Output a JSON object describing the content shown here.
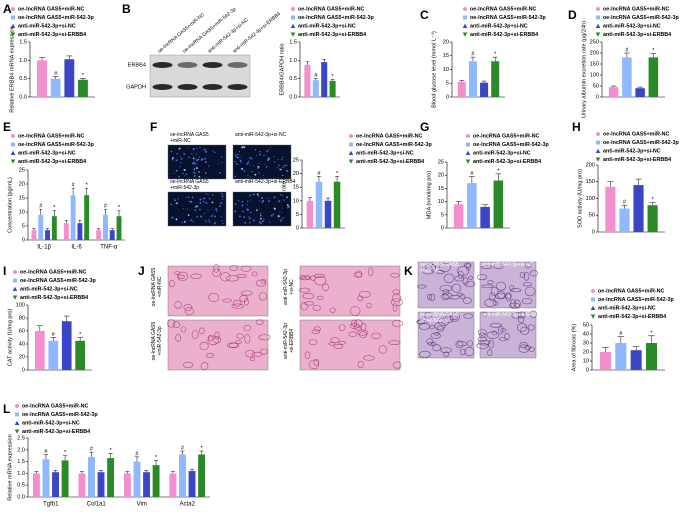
{
  "chart_data": [
    {
      "type": "bar",
      "panel": "A",
      "ylabel": "Relative ERBB4 mRNA expression",
      "ylim": [
        0,
        1.5
      ],
      "yticks": [
        {
          "value": 0,
          "label": "0.0"
        },
        0.5,
        {
          "value": 1,
          "label": "1.0"
        },
        1.5
      ],
      "series": [
        {
          "name": "oe-lncRNA GAS5+miR-NC",
          "color": "#f48fcf",
          "values": [
            1.0
          ],
          "errors": [
            0.08
          ],
          "annotations": [
            null
          ]
        },
        {
          "name": "oe-lncRNA GAS5+miR-542-3p",
          "color": "#8fb8ff",
          "values": [
            0.5
          ],
          "errors": [
            0.06
          ],
          "annotations": [
            "#"
          ]
        },
        {
          "name": "anti-miR-542-3p+si-NC",
          "color": "#3a45c8",
          "values": [
            1.03
          ],
          "errors": [
            0.09
          ],
          "annotations": [
            null
          ]
        },
        {
          "name": "anti-miR-542-3p+si-ERBB4",
          "color": "#2a8a2a",
          "values": [
            0.47
          ],
          "errors": [
            0.04
          ],
          "annotations": [
            "*"
          ]
        }
      ]
    },
    {
      "type": "bar",
      "panel": "B",
      "ylabel": "ERBB4/GAPDH ratio",
      "ylim": [
        0,
        1.5
      ],
      "yticks": [
        {
          "value": 0,
          "label": "0.0"
        },
        0.5,
        {
          "value": 1,
          "label": "1.0"
        },
        1.5
      ],
      "blot_labels": [
        "ERBB4",
        "GAPDH"
      ],
      "lane_labels": [
        "oe-lncRNA GAS5+miR-NC",
        "oe-lncRNA GAS5+miR-542-3p",
        "anti-miR-542-3p+si-NC",
        "anti-miR-542-3p+si-ERBB4"
      ],
      "series": [
        {
          "name": "oe-lncRNA GAS5+miR-NC",
          "color": "#f48fcf",
          "values": [
            0.88
          ],
          "errors": [
            0.08
          ],
          "annotations": [
            null
          ]
        },
        {
          "name": "oe-lncRNA GAS5+miR-542-3p",
          "color": "#8fb8ff",
          "values": [
            0.46
          ],
          "errors": [
            0.05
          ],
          "annotations": [
            "#"
          ]
        },
        {
          "name": "anti-miR-542-3p+si-NC",
          "color": "#3a45c8",
          "values": [
            0.95
          ],
          "errors": [
            0.08
          ],
          "annotations": [
            null
          ]
        },
        {
          "name": "anti-miR-542-3p+si-ERBB4",
          "color": "#2a8a2a",
          "values": [
            0.44
          ],
          "errors": [
            0.04
          ],
          "annotations": [
            "*"
          ]
        }
      ]
    },
    {
      "type": "bar",
      "panel": "C",
      "ylabel": "Blood glucose level (mmol L⁻¹)",
      "ylim": [
        0,
        20
      ],
      "yticks": [
        0,
        5,
        10,
        15,
        20
      ],
      "series": [
        {
          "name": "oe-lncRNA GAS5+miR-NC",
          "color": "#f48fcf",
          "values": [
            5.5
          ],
          "errors": [
            0.6
          ],
          "annotations": [
            null
          ]
        },
        {
          "name": "oe-lncRNA GAS5+miR-542-3p",
          "color": "#8fb8ff",
          "values": [
            13
          ],
          "errors": [
            1.5
          ],
          "annotations": [
            "#"
          ]
        },
        {
          "name": "anti-miR-542-3p+si-NC",
          "color": "#3a45c8",
          "values": [
            5.2
          ],
          "errors": [
            0.6
          ],
          "annotations": [
            null
          ]
        },
        {
          "name": "anti-miR-542-3p+si-ERBB4",
          "color": "#2a8a2a",
          "values": [
            13
          ],
          "errors": [
            1.5
          ],
          "annotations": [
            "*"
          ]
        }
      ]
    },
    {
      "type": "bar",
      "panel": "D",
      "ylabel": "Urinary albumin excretion rate (μg/24h)",
      "ylim": [
        0,
        250
      ],
      "yticks": [
        0,
        50,
        100,
        150,
        200,
        250
      ],
      "series": [
        {
          "name": "oe-lncRNA GAS5+miR-NC",
          "color": "#f48fcf",
          "values": [
            45
          ],
          "errors": [
            5
          ],
          "annotations": [
            null
          ]
        },
        {
          "name": "oe-lncRNA GAS5+miR-542-3p",
          "color": "#8fb8ff",
          "values": [
            180
          ],
          "errors": [
            20
          ],
          "annotations": [
            "#"
          ]
        },
        {
          "name": "anti-miR-542-3p+si-NC",
          "color": "#3a45c8",
          "values": [
            40
          ],
          "errors": [
            5
          ],
          "annotations": [
            null
          ]
        },
        {
          "name": "anti-miR-542-3p+si-ERBB4",
          "color": "#2a8a2a",
          "values": [
            180
          ],
          "errors": [
            18
          ],
          "annotations": [
            "*"
          ]
        }
      ]
    },
    {
      "type": "bar",
      "panel": "E",
      "ylabel": "Concentration (pg/mL)",
      "ylim": [
        0,
        25
      ],
      "yticks": [
        0,
        5,
        10,
        15,
        20,
        25
      ],
      "categories": [
        "IL-1β",
        "IL-6",
        "TNF-α"
      ],
      "series": [
        {
          "name": "oe-lncRNA GAS5+miR-NC",
          "color": "#f48fcf",
          "values": [
            3.5,
            6,
            3.5
          ],
          "errors": [
            0.6,
            1,
            0.6
          ],
          "annotations": [
            null,
            null,
            null
          ]
        },
        {
          "name": "oe-lncRNA GAS5+miR-542-3p",
          "color": "#8fb8ff",
          "values": [
            9,
            16,
            9
          ],
          "errors": [
            2,
            2.5,
            2
          ],
          "annotations": [
            "#",
            "#",
            "#"
          ]
        },
        {
          "name": "anti-miR-542-3p+si-NC",
          "color": "#3a45c8",
          "values": [
            3.5,
            6,
            3.5
          ],
          "errors": [
            0.6,
            1,
            0.6
          ],
          "annotations": [
            null,
            null,
            null
          ]
        },
        {
          "name": "anti-miR-542-3p+si-ERBB4",
          "color": "#2a8a2a",
          "values": [
            8.5,
            16,
            8.5
          ],
          "errors": [
            2,
            2.5,
            2
          ],
          "annotations": [
            "*",
            "*",
            "*"
          ]
        }
      ]
    },
    {
      "type": "bar",
      "panel": "F",
      "ylabel": "Apoptosis rate (%)",
      "ylim": [
        0,
        25
      ],
      "yticks": [
        0,
        5,
        10,
        15,
        20,
        25
      ],
      "image_labels": [
        "oe-lncRNA GAS5\n+miR-NC",
        "anti-miR-542-3p+si-NC",
        "oe-lncRNA GAS5\n+miR-542-3p",
        "anti-miR-542-3p+si-ERBB4"
      ],
      "series": [
        {
          "name": "oe-lncRNA GAS5+miR-NC",
          "color": "#f48fcf",
          "values": [
            10
          ],
          "errors": [
            1.2
          ],
          "annotations": [
            null
          ]
        },
        {
          "name": "oe-lncRNA GAS5+miR-542-3p",
          "color": "#8fb8ff",
          "values": [
            17
          ],
          "errors": [
            2
          ],
          "annotations": [
            "#"
          ]
        },
        {
          "name": "anti-miR-542-3p+si-NC",
          "color": "#3a45c8",
          "values": [
            10
          ],
          "errors": [
            1
          ],
          "annotations": [
            null
          ]
        },
        {
          "name": "anti-miR-542-3p+si-ERBB4",
          "color": "#2a8a2a",
          "values": [
            17
          ],
          "errors": [
            2
          ],
          "annotations": [
            "*"
          ]
        }
      ]
    },
    {
      "type": "bar",
      "panel": "G",
      "ylabel": "MDA (nmol/mg pro)",
      "ylim": [
        0,
        25
      ],
      "yticks": [
        0,
        5,
        10,
        15,
        20,
        25
      ],
      "series": [
        {
          "name": "oe-lncRNA GAS5+miR-NC",
          "color": "#f48fcf",
          "values": [
            9
          ],
          "errors": [
            1
          ],
          "annotations": [
            null
          ]
        },
        {
          "name": "oe-lncRNA GAS5+miR-542-3p",
          "color": "#8fb8ff",
          "values": [
            17
          ],
          "errors": [
            2.5
          ],
          "annotations": [
            "#"
          ]
        },
        {
          "name": "anti-miR-542-3p+si-NC",
          "color": "#3a45c8",
          "values": [
            8
          ],
          "errors": [
            0.8
          ],
          "annotations": [
            null
          ]
        },
        {
          "name": "anti-miR-542-3p+si-ERBB4",
          "color": "#2a8a2a",
          "values": [
            18
          ],
          "errors": [
            2.5
          ],
          "annotations": [
            "*"
          ]
        }
      ]
    },
    {
      "type": "bar",
      "panel": "H",
      "ylabel": "SOD activity (U/mg pro)",
      "ylim": [
        0,
        200
      ],
      "yticks": [
        0,
        50,
        100,
        150,
        200
      ],
      "series": [
        {
          "name": "oe-lncRNA GAS5+miR-NC",
          "color": "#f48fcf",
          "values": [
            135
          ],
          "errors": [
            15
          ],
          "annotations": [
            null
          ]
        },
        {
          "name": "oe-lncRNA GAS5+miR-542-3p",
          "color": "#8fb8ff",
          "values": [
            70
          ],
          "errors": [
            10
          ],
          "annotations": [
            "#"
          ]
        },
        {
          "name": "anti-miR-542-3p+si-NC",
          "color": "#3a45c8",
          "values": [
            140
          ],
          "errors": [
            18
          ],
          "annotations": [
            null
          ]
        },
        {
          "name": "anti-miR-542-3p+si-ERBB4",
          "color": "#2a8a2a",
          "values": [
            80
          ],
          "errors": [
            8
          ],
          "annotations": [
            "*"
          ]
        }
      ]
    },
    {
      "type": "bar",
      "panel": "I",
      "ylabel": "CAT activity (U/mg pro)",
      "ylim": [
        0,
        100
      ],
      "yticks": [
        0,
        20,
        40,
        60,
        80,
        100
      ],
      "series": [
        {
          "name": "oe-lncRNA GAS5+miR-NC",
          "color": "#f48fcf",
          "values": [
            60
          ],
          "errors": [
            8
          ],
          "annotations": [
            null
          ]
        },
        {
          "name": "oe-lncRNA GAS5+miR-542-3p",
          "color": "#8fb8ff",
          "values": [
            45
          ],
          "errors": [
            5
          ],
          "annotations": [
            "#"
          ]
        },
        {
          "name": "anti-miR-542-3p+si-NC",
          "color": "#3a45c8",
          "values": [
            75
          ],
          "errors": [
            8
          ],
          "annotations": [
            null
          ]
        },
        {
          "name": "anti-miR-542-3p+si-ERBB4",
          "color": "#2a8a2a",
          "values": [
            45
          ],
          "errors": [
            5
          ],
          "annotations": [
            "*"
          ]
        }
      ]
    },
    {
      "type": "image",
      "panel": "J",
      "image_labels": [
        "oe-lncRNA GAS5\n+miR-NC",
        "anti-miR-542-3p\n+si-NC",
        "oe-lncRNA GAS5\n+miR-542-3p",
        "anti-miR-542-3p\n+si-ERBB4"
      ]
    },
    {
      "type": "bar",
      "panel": "K",
      "ylabel": "Area of fibrosis (%)",
      "ylim": [
        0,
        50
      ],
      "yticks": [
        0,
        10,
        20,
        30,
        40,
        50
      ],
      "image_labels": [
        "oe-lncRNA GAS5\n+miR-NC",
        "anti-miR-542-3p+si-NC",
        "oe-lncRNA GAS5\n+miR-542-3p",
        "anti-miR-542-3p+si-ERBB4"
      ],
      "series": [
        {
          "name": "oe-lncRNA GAS5+miR-NC",
          "color": "#f48fcf",
          "values": [
            20
          ],
          "errors": [
            5
          ],
          "annotations": [
            null
          ]
        },
        {
          "name": "oe-lncRNA GAS5+miR-542-3p",
          "color": "#8fb8ff",
          "values": [
            30
          ],
          "errors": [
            7
          ],
          "annotations": [
            "#"
          ]
        },
        {
          "name": "anti-miR-542-3p+si-NC",
          "color": "#3a45c8",
          "values": [
            22
          ],
          "errors": [
            4
          ],
          "annotations": [
            null
          ]
        },
        {
          "name": "anti-miR-542-3p+si-ERBB4",
          "color": "#2a8a2a",
          "values": [
            30
          ],
          "errors": [
            8
          ],
          "annotations": [
            "*"
          ]
        }
      ]
    },
    {
      "type": "bar",
      "panel": "L",
      "ylabel": "Relative mRNA expression",
      "ylim": [
        0,
        2.5
      ],
      "yticks": [
        {
          "value": 0,
          "label": "0.0"
        },
        0.5,
        {
          "value": 1,
          "label": "1.0"
        },
        1.5,
        {
          "value": 2,
          "label": "2.0"
        },
        2.5
      ],
      "categories": [
        "Tgfb1",
        "Col1a1",
        "Vim",
        "Acta2"
      ],
      "series": [
        {
          "name": "oe-lncRNA GAS5+miR-NC",
          "color": "#f48fcf",
          "values": [
            1,
            1,
            1,
            1
          ],
          "errors": [
            0.08,
            0.08,
            0.08,
            0.08
          ],
          "annotations": [
            null,
            null,
            null,
            null
          ]
        },
        {
          "name": "oe-lncRNA GAS5+miR-542-3p",
          "color": "#8fb8ff",
          "values": [
            1.6,
            1.7,
            1.5,
            1.8
          ],
          "errors": [
            0.2,
            0.2,
            0.2,
            0.15
          ],
          "annotations": [
            "#",
            "#",
            "#",
            "#"
          ]
        },
        {
          "name": "anti-miR-542-3p+si-NC",
          "color": "#3a45c8",
          "values": [
            1.05,
            1.05,
            1.05,
            1.1
          ],
          "errors": [
            0.08,
            0.08,
            0.08,
            0.08
          ],
          "annotations": [
            null,
            null,
            null,
            null
          ]
        },
        {
          "name": "anti-miR-542-3p+si-ERBB4",
          "color": "#2a8a2a",
          "values": [
            1.55,
            1.65,
            1.35,
            1.8
          ],
          "errors": [
            0.2,
            0.2,
            0.2,
            0.15
          ],
          "annotations": [
            "*",
            "*",
            "*",
            "*"
          ]
        }
      ]
    }
  ]
}
